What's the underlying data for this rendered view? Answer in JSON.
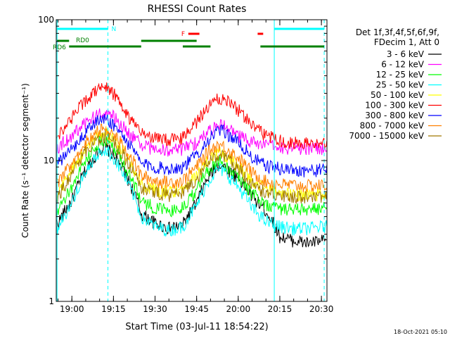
{
  "chart_data": {
    "type": "line",
    "title": "RHESSI Count Rates",
    "xlabel": "Start Time (03-Jul-11 18:54:22)",
    "ylabel": "Count Rate (s⁻¹ detector segment⁻¹)",
    "y_scale": "log",
    "ylim": [
      1,
      100
    ],
    "y_ticks": [
      1,
      10,
      100
    ],
    "y_tick_labels": [
      "1",
      "10",
      "100"
    ],
    "xlim": [
      "18:54:22",
      "20:32:00"
    ],
    "x_ticks": [
      "19:00",
      "19:15",
      "19:30",
      "19:45",
      "20:00",
      "20:15",
      "20:30"
    ],
    "legend_position": "right",
    "legend_header": [
      "Det 1f,3f,4f,5f,6f,9f,",
      "FDecim 1, Att 0"
    ],
    "series": [
      {
        "name": "3 - 6 keV",
        "color": "#000000",
        "x": [
          "18:55",
          "19:00",
          "19:05",
          "19:10",
          "19:12",
          "19:15",
          "19:20",
          "19:25",
          "19:30",
          "19:35",
          "19:40",
          "19:45",
          "19:50",
          "19:53",
          "19:55",
          "20:00",
          "20:05",
          "20:10",
          "20:15",
          "20:20",
          "20:25",
          "20:31"
        ],
        "y": [
          3.6,
          5.2,
          8.5,
          12,
          12.5,
          11,
          7.5,
          4.2,
          3.6,
          3.3,
          3.5,
          5,
          8,
          9.5,
          9,
          7.5,
          5.5,
          4.4,
          2.9,
          2.7,
          2.6,
          2.7
        ]
      },
      {
        "name": "6 - 12 keV",
        "color": "#ff00ff",
        "x": [
          "18:55",
          "19:00",
          "19:05",
          "19:10",
          "19:12",
          "19:15",
          "19:20",
          "19:25",
          "19:30",
          "19:35",
          "19:40",
          "19:45",
          "19:50",
          "19:53",
          "19:55",
          "20:00",
          "20:05",
          "20:10",
          "20:15",
          "20:20",
          "20:25",
          "20:31"
        ],
        "y": [
          12.5,
          15,
          18.5,
          21.5,
          22,
          20.5,
          16,
          13,
          12,
          11.8,
          12,
          13.5,
          16.5,
          18.5,
          17.5,
          15,
          13.5,
          12.8,
          12.5,
          12.3,
          12.2,
          12.3
        ]
      },
      {
        "name": "12 - 25 keV",
        "color": "#00ff00",
        "x": [
          "18:55",
          "19:00",
          "19:05",
          "19:10",
          "19:12",
          "19:15",
          "19:20",
          "19:25",
          "19:30",
          "19:35",
          "19:40",
          "19:45",
          "19:50",
          "19:53",
          "19:55",
          "20:00",
          "20:05",
          "20:10",
          "20:15",
          "20:20",
          "20:25",
          "20:31"
        ],
        "y": [
          4.2,
          6.5,
          10,
          13.5,
          14,
          12.5,
          8.5,
          5.2,
          4.6,
          4.4,
          4.6,
          6.2,
          9,
          10,
          9.5,
          7.8,
          5.8,
          4.9,
          4.6,
          4.5,
          4.5,
          4.6
        ]
      },
      {
        "name": "25 - 50 keV",
        "color": "#00ffff",
        "x": [
          "18:55",
          "19:00",
          "19:05",
          "19:10",
          "19:12",
          "19:15",
          "19:20",
          "19:25",
          "19:30",
          "19:35",
          "19:40",
          "19:45",
          "19:50",
          "19:53",
          "19:55",
          "20:00",
          "20:05",
          "20:10",
          "20:15",
          "20:20",
          "20:25",
          "20:31"
        ],
        "y": [
          3.3,
          5,
          8,
          11.5,
          12,
          10.5,
          7,
          4,
          3.4,
          3.2,
          3.4,
          4.8,
          7.5,
          8.8,
          8.3,
          6.5,
          4.6,
          3.7,
          3.4,
          3.3,
          3.3,
          3.4
        ]
      },
      {
        "name": "50 - 100 keV",
        "color": "#ffff00",
        "x": [
          "18:55",
          "19:00",
          "19:05",
          "19:10",
          "19:12",
          "19:15",
          "19:20",
          "19:25",
          "19:30",
          "19:35",
          "19:40",
          "19:45",
          "19:50",
          "19:53",
          "19:55",
          "20:00",
          "20:05",
          "20:10",
          "20:15",
          "20:20",
          "20:25",
          "20:31"
        ],
        "y": [
          5.8,
          8.5,
          12,
          15.5,
          16,
          14.5,
          10.5,
          6.8,
          6.2,
          6,
          6.2,
          7.8,
          10.5,
          11.5,
          11,
          9.2,
          7.2,
          6.2,
          5.9,
          5.8,
          5.7,
          5.8
        ]
      },
      {
        "name": "100 - 300 keV",
        "color": "#ff0000",
        "x": [
          "18:55",
          "19:00",
          "19:05",
          "19:10",
          "19:12",
          "19:15",
          "19:20",
          "19:25",
          "19:30",
          "19:35",
          "19:40",
          "19:45",
          "19:50",
          "19:53",
          "19:55",
          "20:00",
          "20:05",
          "20:10",
          "20:15",
          "20:20",
          "20:25",
          "20:31"
        ],
        "y": [
          15,
          20,
          27,
          33,
          34,
          30,
          21,
          15.5,
          14.5,
          14,
          14.5,
          19,
          25,
          28,
          27.5,
          23,
          18,
          15,
          14,
          13.5,
          13.3,
          13.5
        ]
      },
      {
        "name": "300 - 800 keV",
        "color": "#0000ff",
        "x": [
          "18:55",
          "19:00",
          "19:05",
          "19:10",
          "19:12",
          "19:15",
          "19:20",
          "19:25",
          "19:30",
          "19:35",
          "19:40",
          "19:45",
          "19:50",
          "19:53",
          "19:55",
          "20:00",
          "20:05",
          "20:10",
          "20:15",
          "20:20",
          "20:25",
          "20:31"
        ],
        "y": [
          9.5,
          12,
          16,
          19.5,
          20,
          18,
          13.5,
          9.5,
          9,
          8.8,
          9,
          11,
          14.5,
          16.5,
          16,
          13.5,
          10.5,
          9.2,
          8.8,
          8.6,
          8.5,
          8.6
        ]
      },
      {
        "name": "800 - 7000 keV",
        "color": "#ff8000",
        "x": [
          "18:55",
          "19:00",
          "19:05",
          "19:10",
          "19:12",
          "19:15",
          "19:20",
          "19:25",
          "19:30",
          "19:35",
          "19:40",
          "19:45",
          "19:50",
          "19:53",
          "19:55",
          "20:00",
          "20:05",
          "20:10",
          "20:15",
          "20:20",
          "20:25",
          "20:31"
        ],
        "y": [
          6.8,
          9.5,
          13.5,
          16.5,
          17,
          15.5,
          11.5,
          7.8,
          7.2,
          7,
          7.2,
          9,
          12,
          13,
          12.5,
          10.5,
          8.2,
          7.1,
          6.8,
          6.7,
          6.6,
          6.7
        ]
      },
      {
        "name": "7000 - 15000 keV",
        "color": "#a07800",
        "x": [
          "18:55",
          "19:00",
          "19:05",
          "19:10",
          "19:12",
          "19:15",
          "19:20",
          "19:25",
          "19:30",
          "19:35",
          "19:40",
          "19:45",
          "19:50",
          "19:53",
          "19:55",
          "20:00",
          "20:05",
          "20:10",
          "20:15",
          "20:20",
          "20:25",
          "20:31"
        ],
        "y": [
          5.5,
          8,
          11.5,
          14.5,
          15,
          13.5,
          9.8,
          6.5,
          5.9,
          5.7,
          5.9,
          7.4,
          10,
          11,
          10.6,
          8.8,
          6.8,
          5.9,
          5.6,
          5.5,
          5.4,
          5.5
        ]
      }
    ],
    "vertical_lines": [
      {
        "time": "18:54:40",
        "style": "solid",
        "color": "#00ffff"
      },
      {
        "time": "19:13:00",
        "style": "dashed",
        "color": "#00ffff"
      },
      {
        "time": "20:13:00",
        "style": "solid",
        "color": "#00ffff"
      },
      {
        "time": "20:31:00",
        "style": "dashed",
        "color": "#00ffff"
      }
    ],
    "flag_bars": [
      {
        "label": "N",
        "color": "#00ffff",
        "intervals": [
          [
            "18:54:40",
            "19:13:00"
          ],
          [
            "20:13:00",
            "20:31:00"
          ]
        ]
      },
      {
        "label": "RD0",
        "color": "#008000",
        "intervals": [
          [
            "18:54:40",
            "18:59:00"
          ]
        ]
      },
      {
        "label": "RD6",
        "color": "#008000",
        "intervals": [
          [
            "18:59:00",
            "19:25:00"
          ],
          [
            "19:40:00",
            "19:50:00"
          ],
          [
            "20:08:00",
            "20:31:00"
          ]
        ]
      },
      {
        "label": "",
        "color": "#008000",
        "intervals": [
          [
            "19:25:00",
            "19:45:00"
          ]
        ]
      },
      {
        "label": "F",
        "color": "#ff0000",
        "intervals": [
          [
            "19:42:00",
            "19:46:00"
          ],
          [
            "20:07:00",
            "20:09:00"
          ]
        ]
      }
    ],
    "grid": false
  },
  "footer": {
    "timestamp": "18-Oct-2021 05:10"
  }
}
